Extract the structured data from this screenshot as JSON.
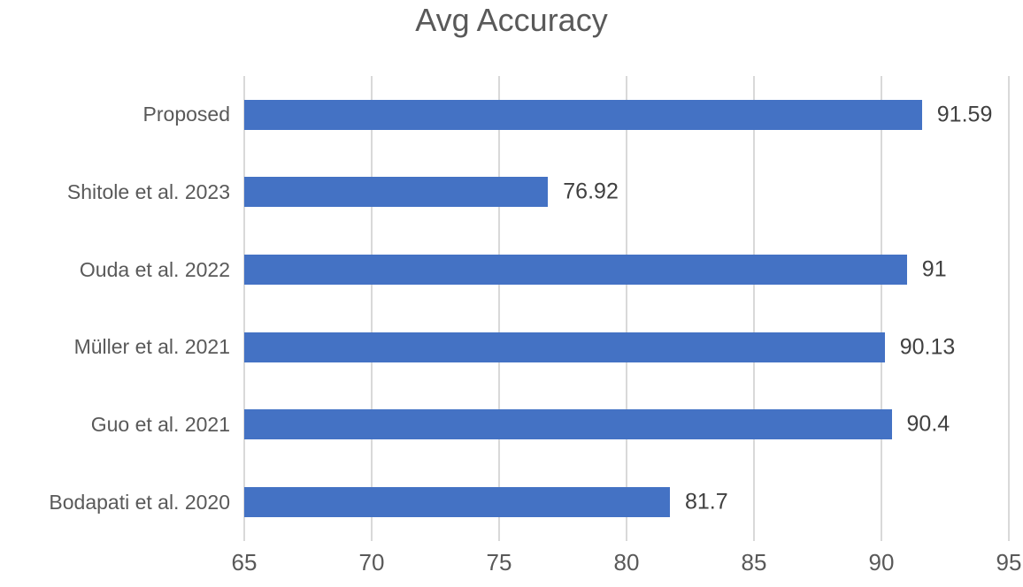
{
  "chart_data": {
    "type": "bar",
    "orientation": "horizontal",
    "title": "Avg Accuracy",
    "categories": [
      "Proposed",
      "Shitole et al. 2023",
      "Ouda et al. 2022",
      "Müller et al. 2021",
      "Guo et al. 2021",
      "Bodapati et al. 2020"
    ],
    "values": [
      91.59,
      76.92,
      91,
      90.13,
      90.4,
      81.7
    ],
    "value_labels": [
      "91.59",
      "76.92",
      "91",
      "90.13",
      "90.4",
      "81.7"
    ],
    "xlabel": "",
    "ylabel": "",
    "xlim": [
      65,
      95
    ],
    "xticks": [
      65,
      70,
      75,
      80,
      85,
      90,
      95
    ],
    "grid": true,
    "legend_position": "none",
    "colors": {
      "bar": "#4472C4",
      "gridline": "#D9D9D9",
      "title_text": "#595959",
      "axis_text": "#595959",
      "value_text": "#404040",
      "background": "#FFFFFF"
    }
  }
}
